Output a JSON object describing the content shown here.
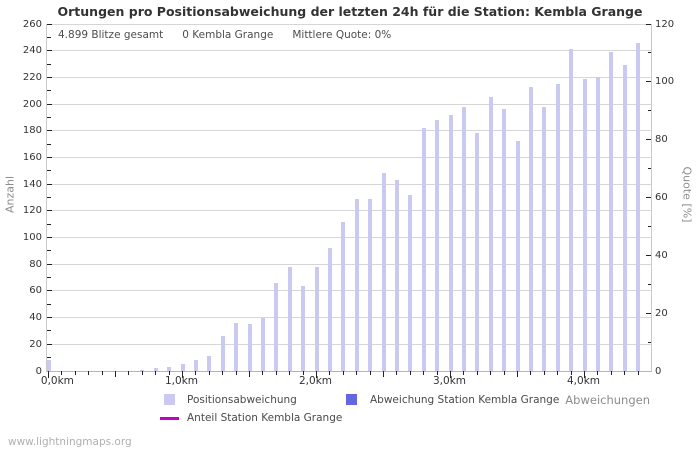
{
  "page": {
    "watermark": "www.lightningmaps.org"
  },
  "chart_data": {
    "type": "bar",
    "title": "Ortungen pro Positionsabweichung der letzten 24h für die Station: Kembla Grange",
    "annotations": [
      "4.899 Blitze gesamt",
      "0 Kembla Grange",
      "Mittlere Quote: 0%"
    ],
    "xlabel": "Abweichungen",
    "ylabel_left": "Anzahl",
    "ylabel_right": "Quote [%]",
    "ylim_left": [
      0,
      260
    ],
    "ylim_right": [
      0,
      120
    ],
    "y_left_tick_step": 20,
    "y_right_tick_step": 20,
    "grid": true,
    "legend_position": "bottom",
    "x_unit": "km",
    "x": [
      0.0,
      0.1,
      0.2,
      0.3,
      0.4,
      0.5,
      0.6,
      0.7,
      0.8,
      0.9,
      1.0,
      1.1,
      1.2,
      1.3,
      1.4,
      1.5,
      1.6,
      1.7,
      1.8,
      1.9,
      2.0,
      2.1,
      2.2,
      2.3,
      2.4,
      2.5,
      2.6,
      2.7,
      2.8,
      2.9,
      3.0,
      3.1,
      3.2,
      3.3,
      3.4,
      3.5,
      3.6,
      3.7,
      3.8,
      3.9,
      4.0,
      4.1,
      4.2,
      4.3,
      4.4
    ],
    "series": [
      {
        "name": "Positionsabweichung",
        "color": "#c9c9f2",
        "values": [
          8,
          0,
          0,
          0,
          0,
          0,
          0,
          1,
          2,
          3,
          5,
          8,
          11,
          26,
          36,
          35,
          40,
          66,
          78,
          64,
          78,
          92,
          112,
          129,
          129,
          148,
          143,
          132,
          182,
          188,
          192,
          198,
          178,
          205,
          196,
          172,
          213,
          198,
          215,
          241,
          219,
          220,
          239,
          229,
          246
        ]
      }
    ],
    "x_axis_labels": [
      {
        "pos": 0,
        "label": "0,0km"
      },
      {
        "pos": 10,
        "label": "1,0km"
      },
      {
        "pos": 20,
        "label": "2,0km"
      },
      {
        "pos": 30,
        "label": "3,0km"
      },
      {
        "pos": 40,
        "label": "4,0km"
      }
    ],
    "legend": [
      {
        "label": "Positionsabweichung",
        "color": "#c9c9f2",
        "type": "box"
      },
      {
        "label": "Abweichung Station Kembla Grange",
        "color": "#6666e0",
        "type": "box"
      },
      {
        "label": "Anteil Station Kembla Grange",
        "color": "#c400c4",
        "type": "line"
      }
    ]
  }
}
